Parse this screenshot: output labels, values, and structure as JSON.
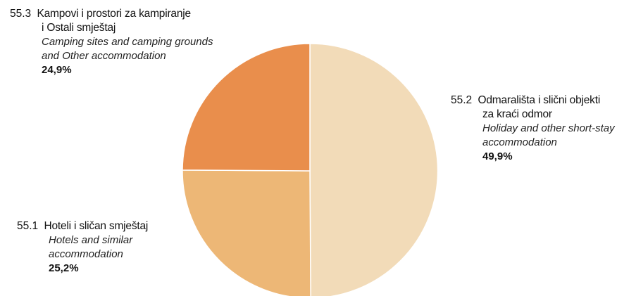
{
  "chart_data": {
    "type": "pie",
    "slices": [
      {
        "code": "55.2",
        "label_hr_lines": [
          "Odmarališta i slični objekti",
          "za kraći odmor"
        ],
        "label_en_lines": [
          "Holiday and other short-stay",
          "accommodation"
        ],
        "value_label": "49,9%",
        "value": 49.9,
        "color": "#F2DBB8"
      },
      {
        "code": "55.1",
        "label_hr_lines": [
          "Hoteli i sličan smještaj"
        ],
        "label_en_lines": [
          "Hotels and similar",
          "accommodation"
        ],
        "value_label": "25,2%",
        "value": 25.2,
        "color": "#EDB776"
      },
      {
        "code": "55.3",
        "label_hr_lines": [
          "Kampovi i prostori za kampiranje",
          "i  Ostali smještaj"
        ],
        "label_en_lines": [
          "Camping sites and camping grounds",
          "and  Other accommodation"
        ],
        "value_label": "24,9%",
        "value": 24.9,
        "color": "#E98E4C"
      }
    ]
  }
}
